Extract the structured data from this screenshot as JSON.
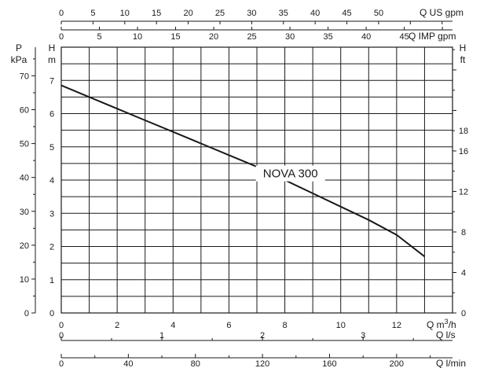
{
  "chart_data": {
    "type": "line",
    "title": "",
    "series": [
      {
        "name": "NOVA 300",
        "x": [
          0,
          1,
          2,
          3,
          4,
          5,
          6,
          7,
          8,
          9,
          10,
          11,
          12,
          13
        ],
        "y": [
          6.85,
          6.5,
          6.15,
          5.8,
          5.45,
          5.1,
          4.75,
          4.4,
          4.0,
          3.6,
          3.2,
          2.8,
          2.35,
          1.7
        ]
      }
    ],
    "x_primary": {
      "label": "Q m³/h",
      "unit_text": "Q m",
      "unit_sup": "3",
      "unit_tail": "/h",
      "range": [
        0,
        14
      ],
      "ticks": [
        {
          "v": 0,
          "t": "0"
        },
        {
          "v": 2,
          "t": "2"
        },
        {
          "v": 4,
          "t": "4"
        },
        {
          "v": 6,
          "t": "6"
        },
        {
          "v": 8,
          "t": "8"
        },
        {
          "v": 10,
          "t": "10"
        },
        {
          "v": 12,
          "t": "12"
        }
      ]
    },
    "x_ls": {
      "label": "Q l/s",
      "ticks": [
        {
          "v": 0,
          "t": "0"
        },
        {
          "v": 1,
          "t": "1"
        },
        {
          "v": 2,
          "t": "2"
        },
        {
          "v": 3,
          "t": "3"
        }
      ]
    },
    "x_lmin": {
      "label": "Q l/min",
      "ticks": [
        {
          "v": 0,
          "t": "0"
        },
        {
          "v": 40,
          "t": "40"
        },
        {
          "v": 80,
          "t": "80"
        },
        {
          "v": 120,
          "t": "120"
        },
        {
          "v": 160,
          "t": "160"
        },
        {
          "v": 200,
          "t": "200"
        }
      ]
    },
    "x_us_gpm": {
      "label": "Q US gpm",
      "ticks": [
        {
          "v": 0,
          "t": "0"
        },
        {
          "v": 5,
          "t": "5"
        },
        {
          "v": 10,
          "t": "10"
        },
        {
          "v": 15,
          "t": "15"
        },
        {
          "v": 20,
          "t": "20"
        },
        {
          "v": 25,
          "t": "25"
        },
        {
          "v": 30,
          "t": "30"
        },
        {
          "v": 35,
          "t": "35"
        },
        {
          "v": 40,
          "t": "40"
        },
        {
          "v": 45,
          "t": "45"
        },
        {
          "v": 50,
          "t": "50"
        }
      ]
    },
    "x_imp_gpm": {
      "label": "Q IMP gpm",
      "ticks": [
        {
          "v": 0,
          "t": "0"
        },
        {
          "v": 5,
          "t": "5"
        },
        {
          "v": 10,
          "t": "10"
        },
        {
          "v": 15,
          "t": "15"
        },
        {
          "v": 20,
          "t": "20"
        },
        {
          "v": 25,
          "t": "25"
        },
        {
          "v": 30,
          "t": "30"
        },
        {
          "v": 35,
          "t": "35"
        },
        {
          "v": 40,
          "t": "40"
        },
        {
          "v": 45,
          "t": "45"
        }
      ]
    },
    "y_m": {
      "label_top": "H",
      "label_unit": "m",
      "range": [
        0,
        8
      ],
      "ticks": [
        {
          "v": 0,
          "t": "0"
        },
        {
          "v": 1,
          "t": "1"
        },
        {
          "v": 2,
          "t": "2"
        },
        {
          "v": 3,
          "t": "3"
        },
        {
          "v": 4,
          "t": "4"
        },
        {
          "v": 5,
          "t": "5"
        },
        {
          "v": 6,
          "t": "6"
        },
        {
          "v": 7,
          "t": "7"
        }
      ]
    },
    "y_kpa": {
      "label_top": "P",
      "label_unit": "kPa",
      "ticks": [
        {
          "v": 0,
          "t": "0"
        },
        {
          "v": 10,
          "t": "10"
        },
        {
          "v": 20,
          "t": "20"
        },
        {
          "v": 30,
          "t": "30"
        },
        {
          "v": 40,
          "t": "40"
        },
        {
          "v": 50,
          "t": "50"
        },
        {
          "v": 60,
          "t": "60"
        },
        {
          "v": 70,
          "t": "70"
        }
      ]
    },
    "y_ft": {
      "label_top": "H",
      "label_unit": "ft",
      "ticks": [
        {
          "v": 0,
          "t": "0"
        },
        {
          "v": 4,
          "t": "4"
        },
        {
          "v": 8,
          "t": "8"
        },
        {
          "v": 12,
          "t": "12"
        },
        {
          "v": 16,
          "t": "16"
        },
        {
          "v": 18,
          "t": "18"
        }
      ]
    },
    "grid": true,
    "colors": {
      "line": "#1a1a1a",
      "grid": "#1a1a1a",
      "background": "#ffffff"
    }
  }
}
